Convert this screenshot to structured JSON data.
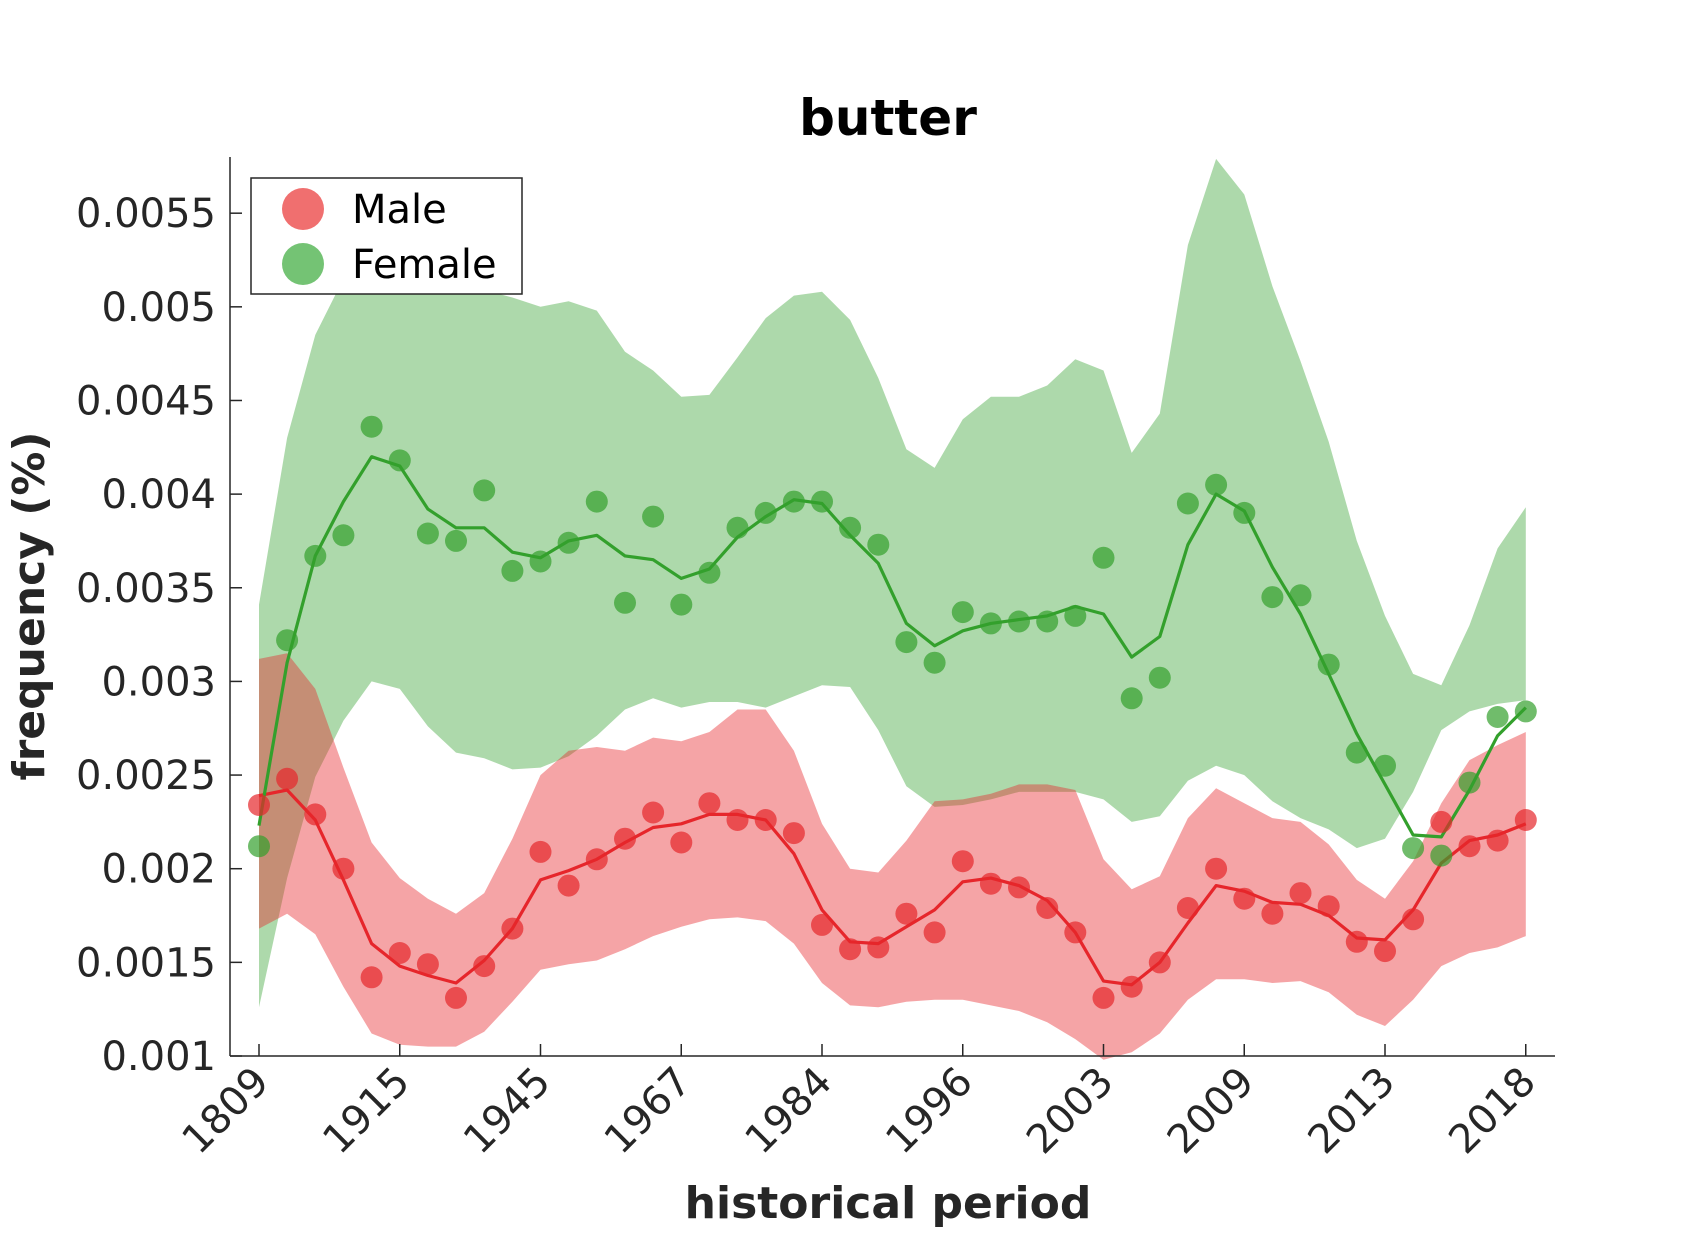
{
  "chart_data": {
    "type": "scatter",
    "title": "butter",
    "xlabel": "historical period",
    "ylabel": "frequency (%)",
    "ylim": [
      0.001,
      0.0058
    ],
    "yticks": [
      0.001,
      0.0015,
      0.002,
      0.0025,
      0.003,
      0.0035,
      0.004,
      0.0045,
      0.005,
      0.0055
    ],
    "ytick_labels": [
      "0.001",
      "0.0015",
      "0.002",
      "0.0025",
      "0.003",
      "0.0035",
      "0.004",
      "0.0045",
      "0.005",
      "0.0055"
    ],
    "xtick_labels": [
      "1809",
      "1915",
      "1945",
      "1967",
      "1984",
      "1996",
      "2003",
      "2009",
      "2013",
      "2018"
    ],
    "xtick_positions": [
      1,
      6,
      11,
      16,
      21,
      26,
      31,
      36,
      41,
      46
    ],
    "xlim": [
      1,
      46
    ],
    "grid": false,
    "legend_position": "top-left",
    "series": [
      {
        "name": "Male",
        "color": "#e6262b",
        "points": [
          0.00234,
          0.00248,
          0.00229,
          0.002,
          0.00142,
          0.00155,
          0.00149,
          0.00131,
          0.00148,
          0.00168,
          0.00209,
          0.00191,
          0.00205,
          0.00216,
          0.0023,
          0.00214,
          0.00235,
          0.00226,
          0.00226,
          0.00219,
          0.0017,
          0.00157,
          0.00158,
          0.00176,
          0.00166,
          0.00204,
          0.00192,
          0.0019,
          0.00179,
          0.00166,
          0.00131,
          0.00137,
          0.0015,
          0.00179,
          0.002,
          0.00184,
          0.00176,
          0.00187,
          0.0018,
          0.00161,
          0.00156,
          0.00173,
          0.00225,
          0.00212,
          0.00215,
          0.00226
        ],
        "trend": [
          0.00239,
          0.00242,
          0.00226,
          0.00194,
          0.0016,
          0.00148,
          0.00143,
          0.00139,
          0.00151,
          0.00168,
          0.00194,
          0.00199,
          0.00205,
          0.00214,
          0.00222,
          0.00224,
          0.00229,
          0.00229,
          0.00226,
          0.00208,
          0.00178,
          0.00161,
          0.0016,
          0.00169,
          0.00178,
          0.00193,
          0.00195,
          0.00191,
          0.00183,
          0.00166,
          0.0014,
          0.00138,
          0.0015,
          0.00171,
          0.00191,
          0.00188,
          0.00182,
          0.00181,
          0.00175,
          0.00163,
          0.00162,
          0.00178,
          0.00203,
          0.00215,
          0.00218,
          0.00224
        ],
        "band_upper": [
          0.00312,
          0.00315,
          0.00296,
          0.00254,
          0.00214,
          0.00195,
          0.00184,
          0.00176,
          0.00187,
          0.00216,
          0.0025,
          0.00263,
          0.00265,
          0.00263,
          0.0027,
          0.00268,
          0.00273,
          0.00285,
          0.00285,
          0.00263,
          0.00224,
          0.002,
          0.00198,
          0.00215,
          0.00236,
          0.00237,
          0.0024,
          0.00245,
          0.00245,
          0.00242,
          0.00205,
          0.00189,
          0.00196,
          0.00227,
          0.00243,
          0.00235,
          0.00227,
          0.00225,
          0.00213,
          0.00194,
          0.00184,
          0.00204,
          0.00235,
          0.00258,
          0.00266,
          0.00273
        ],
        "band_lower": [
          0.00168,
          0.00176,
          0.00165,
          0.00137,
          0.00112,
          0.00106,
          0.00105,
          0.00105,
          0.00113,
          0.00129,
          0.00146,
          0.00149,
          0.00151,
          0.00157,
          0.00164,
          0.00169,
          0.00173,
          0.00174,
          0.00172,
          0.0016,
          0.00139,
          0.00127,
          0.00126,
          0.00129,
          0.0013,
          0.0013,
          0.00127,
          0.00124,
          0.00118,
          0.00109,
          0.00098,
          0.00102,
          0.00112,
          0.0013,
          0.00141,
          0.00141,
          0.00139,
          0.0014,
          0.00134,
          0.00122,
          0.00116,
          0.0013,
          0.00148,
          0.00155,
          0.00158,
          0.00164
        ]
      },
      {
        "name": "Female",
        "color": "#33a02c",
        "points": [
          0.00212,
          0.00322,
          0.00367,
          0.00378,
          0.00436,
          0.00418,
          0.00379,
          0.00375,
          0.00402,
          0.00359,
          0.00364,
          0.00374,
          0.00396,
          0.00342,
          0.00388,
          0.00341,
          0.00358,
          0.00382,
          0.0039,
          0.00396,
          0.00396,
          0.00382,
          0.00373,
          0.00321,
          0.0031,
          0.00337,
          0.00331,
          0.00332,
          0.00332,
          0.00335,
          0.00366,
          0.00291,
          0.00302,
          0.00395,
          0.00405,
          0.0039,
          0.00345,
          0.00346,
          0.00309,
          0.00262,
          0.00255,
          0.00211,
          0.00207,
          0.00246,
          0.00281,
          0.00284
        ],
        "trend": [
          0.00223,
          0.0031,
          0.00367,
          0.00396,
          0.0042,
          0.00415,
          0.00392,
          0.00382,
          0.00382,
          0.00369,
          0.00366,
          0.00375,
          0.00378,
          0.00367,
          0.00365,
          0.00355,
          0.0036,
          0.00377,
          0.00388,
          0.00397,
          0.00395,
          0.00378,
          0.00363,
          0.00331,
          0.00319,
          0.00327,
          0.00331,
          0.00333,
          0.00335,
          0.0034,
          0.00336,
          0.00313,
          0.00324,
          0.00373,
          0.004,
          0.00391,
          0.00361,
          0.00336,
          0.00304,
          0.00272,
          0.00245,
          0.00218,
          0.00217,
          0.00242,
          0.00271,
          0.00286
        ],
        "band_upper": [
          0.00341,
          0.0043,
          0.00485,
          0.00515,
          0.00535,
          0.00528,
          0.00516,
          0.00508,
          0.00509,
          0.00505,
          0.005,
          0.00503,
          0.00498,
          0.00476,
          0.00466,
          0.00452,
          0.00453,
          0.00473,
          0.00494,
          0.00506,
          0.00508,
          0.00493,
          0.00462,
          0.00424,
          0.00414,
          0.0044,
          0.00452,
          0.00452,
          0.00458,
          0.00472,
          0.00466,
          0.00422,
          0.00443,
          0.00533,
          0.00579,
          0.0056,
          0.00511,
          0.00471,
          0.00428,
          0.00375,
          0.00335,
          0.00304,
          0.00298,
          0.0033,
          0.00371,
          0.00393
        ],
        "band_lower": [
          0.00126,
          0.00195,
          0.00249,
          0.00279,
          0.003,
          0.00296,
          0.00276,
          0.00262,
          0.00259,
          0.00253,
          0.00254,
          0.0026,
          0.00271,
          0.00285,
          0.00291,
          0.00286,
          0.00289,
          0.00289,
          0.00286,
          0.00292,
          0.00298,
          0.00297,
          0.00274,
          0.00244,
          0.00233,
          0.00234,
          0.00237,
          0.00241,
          0.00241,
          0.00241,
          0.00237,
          0.00225,
          0.00228,
          0.00247,
          0.00255,
          0.0025,
          0.00236,
          0.00227,
          0.00221,
          0.00211,
          0.00216,
          0.00241,
          0.00274,
          0.00284,
          0.00288,
          0.0029
        ]
      }
    ]
  }
}
